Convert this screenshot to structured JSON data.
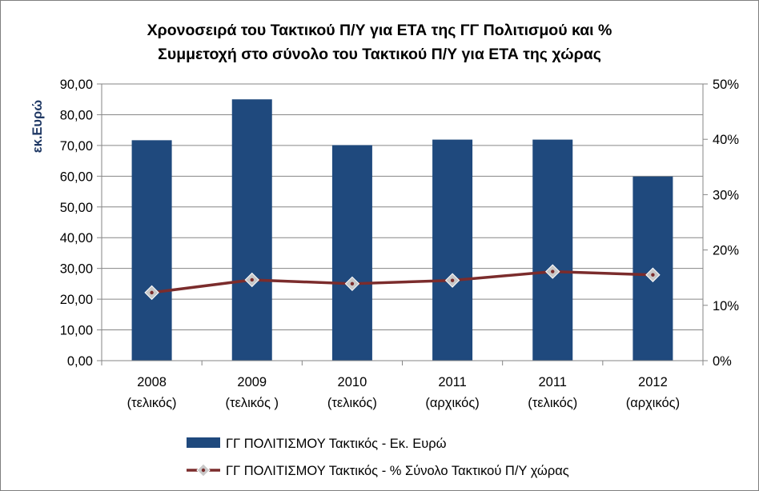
{
  "chart_data": {
    "type": "bar+line",
    "title_lines": [
      "Χρονοσειρά του Τακτικού Π/Υ για ΕΤΑ της ΓΓ  Πολιτισμού  και %",
      "Συμμετοχή  στο σύνολο του Τακτικού Π/Υ για ΕΤΑ της χώρας"
    ],
    "categories": [
      [
        "2008",
        "(τελικός)"
      ],
      [
        "2009",
        "(τελικός )"
      ],
      [
        "2010",
        "(τελικός)"
      ],
      [
        "2011",
        "(αρχικός)"
      ],
      [
        "2011",
        "(τελικός)"
      ],
      [
        "2012",
        "(αρχικός)"
      ]
    ],
    "ylabel": "εκ.Ευρώ",
    "y_left": {
      "min": 0,
      "max": 90,
      "ticks": [
        "0,00",
        "10,00",
        "20,00",
        "30,00",
        "40,00",
        "50,00",
        "60,00",
        "70,00",
        "80,00",
        "90,00"
      ]
    },
    "y_right": {
      "min": 0,
      "max": 50,
      "ticks": [
        "0%",
        "10%",
        "20%",
        "30%",
        "40%",
        "50%"
      ]
    },
    "series": [
      {
        "name": "ΓΓ ΠΟΛΙΤΙΣΜΟΥ Τακτικός - Εκ. Ευρώ",
        "type": "bar",
        "axis": "left",
        "color": "#1f497d",
        "values": [
          71.7,
          85.0,
          70.1,
          71.9,
          71.9,
          59.9
        ]
      },
      {
        "name": "ΓΓ ΠΟΛΙΤΙΣΜΟΥ Τακτικός - % Σύνολο Τακτικού Π/Υ χώρας",
        "type": "line",
        "axis": "right",
        "color": "#7b2c2c",
        "marker_color": "#c8c8c8",
        "values": [
          12.3,
          14.6,
          13.9,
          14.5,
          16.1,
          15.5
        ]
      }
    ],
    "grid": true,
    "legend_position": "bottom"
  }
}
